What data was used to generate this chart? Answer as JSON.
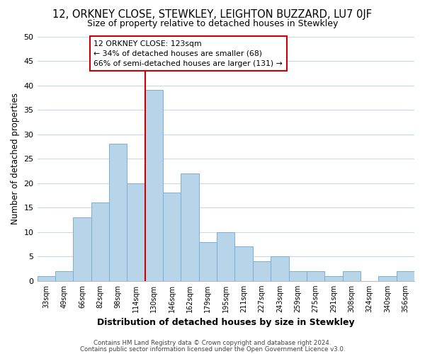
{
  "title": "12, ORKNEY CLOSE, STEWKLEY, LEIGHTON BUZZARD, LU7 0JF",
  "subtitle": "Size of property relative to detached houses in Stewkley",
  "xlabel": "Distribution of detached houses by size in Stewkley",
  "ylabel": "Number of detached properties",
  "bin_labels": [
    "33sqm",
    "49sqm",
    "66sqm",
    "82sqm",
    "98sqm",
    "114sqm",
    "130sqm",
    "146sqm",
    "162sqm",
    "179sqm",
    "195sqm",
    "211sqm",
    "227sqm",
    "243sqm",
    "259sqm",
    "275sqm",
    "291sqm",
    "308sqm",
    "324sqm",
    "340sqm",
    "356sqm"
  ],
  "bar_values": [
    1,
    2,
    13,
    16,
    28,
    20,
    39,
    18,
    22,
    8,
    10,
    7,
    4,
    5,
    2,
    2,
    1,
    2,
    0,
    1,
    2
  ],
  "bar_color": "#b8d4e8",
  "bar_edge_color": "#7aafd4",
  "vline_color": "#cc0000",
  "vline_bar_index": 6,
  "ylim": [
    0,
    50
  ],
  "yticks": [
    0,
    5,
    10,
    15,
    20,
    25,
    30,
    35,
    40,
    45,
    50
  ],
  "annotation_title": "12 ORKNEY CLOSE: 123sqm",
  "annotation_line1": "← 34% of detached houses are smaller (68)",
  "annotation_line2": "66% of semi-detached houses are larger (131) →",
  "annotation_box_color": "#ffffff",
  "annotation_box_edge": "#cc0000",
  "footer1": "Contains HM Land Registry data © Crown copyright and database right 2024.",
  "footer2": "Contains public sector information licensed under the Open Government Licence v3.0.",
  "background_color": "#ffffff",
  "grid_color": "#c8d8e8"
}
